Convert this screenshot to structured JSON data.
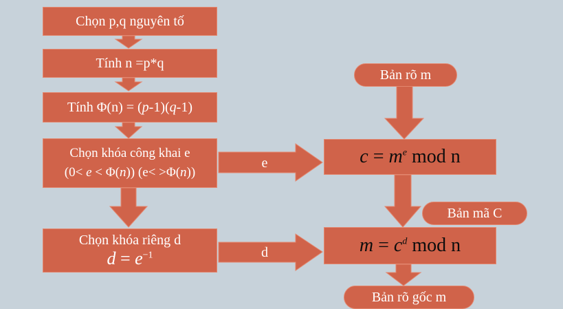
{
  "steps": {
    "choose_pq": "Chọn p,q nguyên tố",
    "compute_n": "Tính n =p*q",
    "compute_phi_prefix": "Tính Φ(n) = (",
    "compute_phi_p": "p",
    "compute_phi_mid": "-1)(",
    "compute_phi_q": "q",
    "compute_phi_suffix": "-1)",
    "public_key_title": "Chọn khóa công khai e",
    "public_key_cond_open": "(0< ",
    "public_key_cond_e": "e",
    "public_key_cond_lt": " < Φ(",
    "public_key_cond_n": "n",
    "public_key_cond_mid": ")) (e< >Φ(",
    "public_key_cond_n2": "n",
    "public_key_cond_close": "))",
    "private_key_title": "Chọn khóa riêng d",
    "private_key_formula_lhs": "d",
    "private_key_formula_eq": " = ",
    "private_key_formula_base": "e",
    "private_key_formula_exp": "−1"
  },
  "encryption": {
    "lhs": "c",
    "eq": " = ",
    "base": "m",
    "exp": "e",
    "mod": " mod ",
    "modulus": "n"
  },
  "decryption": {
    "lhs": "m",
    "eq": " = ",
    "base": "c",
    "exp": "d",
    "mod": " mod ",
    "modulus": "n"
  },
  "arrows": {
    "e_label": "e",
    "d_label": "d"
  },
  "terminals": {
    "plaintext": "Bản rõ m",
    "ciphertext": "Bản mã C",
    "recovered": "Bản rõ gốc m"
  }
}
